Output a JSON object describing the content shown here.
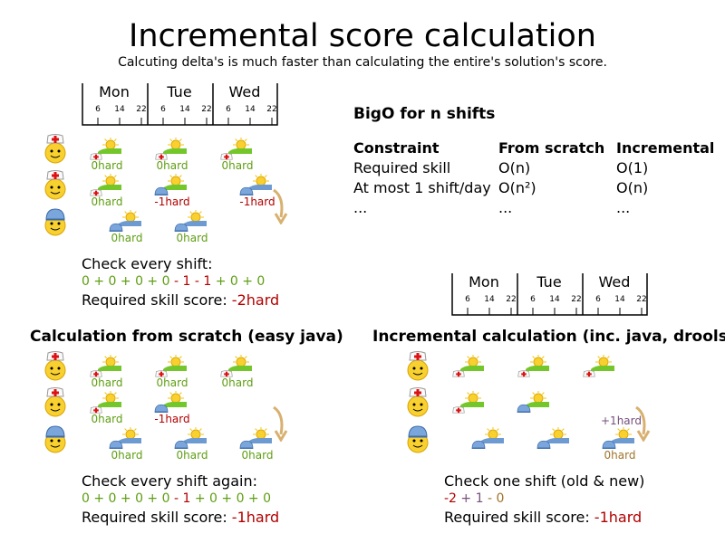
{
  "title": "Incremental score calculation",
  "subtitle": "Calcuting delta's is much faster than calculating the entire's solution's score.",
  "colors": {
    "good": "#5e9e12",
    "bad": "#b20000",
    "delta": "#75507b",
    "new": "#a0742a",
    "nurse_shift": "#73c72a",
    "other_shift": "#6d9bd1"
  },
  "ruler": {
    "days": [
      "Mon",
      "Tue",
      "Wed"
    ],
    "ticks": [
      "6",
      "14",
      "22"
    ]
  },
  "bigo": {
    "title": "BigO for n shifts",
    "headers": [
      "Constraint",
      "From scratch",
      "Incremental"
    ],
    "rows": [
      [
        "Required skill",
        "O(n)",
        "O(1)"
      ],
      [
        "At most 1 shift/day",
        "O(n²)",
        "O(n)"
      ],
      [
        "...",
        "...",
        "..."
      ]
    ]
  },
  "panels": [
    {
      "employees": [
        "nurse",
        "nurse",
        "cap"
      ],
      "shifts": [
        {
          "row": 0,
          "day": 0,
          "slot": "early",
          "skill": "nurse",
          "assignee": "nurse",
          "score": "0hard",
          "tone": "g"
        },
        {
          "row": 0,
          "day": 1,
          "slot": "early",
          "skill": "nurse",
          "assignee": "nurse",
          "score": "0hard",
          "tone": "g"
        },
        {
          "row": 0,
          "day": 2,
          "slot": "early",
          "skill": "nurse",
          "assignee": "nurse",
          "score": "0hard",
          "tone": "g"
        },
        {
          "row": 1,
          "day": 0,
          "slot": "early",
          "skill": "nurse",
          "assignee": "nurse",
          "score": "0hard",
          "tone": "g"
        },
        {
          "row": 1,
          "day": 1,
          "slot": "early",
          "skill": "nurse",
          "assignee": "cap",
          "score": "-1hard",
          "tone": "r"
        },
        {
          "row": 1,
          "day": 2,
          "slot": "late",
          "skill": "other",
          "assignee": "cap",
          "score": "-1hard",
          "tone": "r"
        },
        {
          "row": 2,
          "day": 0,
          "slot": "late",
          "skill": "other",
          "assignee": "cap",
          "score": "0hard",
          "tone": "g"
        },
        {
          "row": 2,
          "day": 1,
          "slot": "late",
          "skill": "other",
          "assignee": "cap",
          "score": "0hard",
          "tone": "g"
        }
      ],
      "check": "Check every shift:",
      "sum": [
        {
          "t": "0 + 0 + 0 + 0",
          "c": "g"
        },
        {
          "t": " - 1 - 1 ",
          "c": "r"
        },
        {
          "t": "+ 0 + 0",
          "c": "g"
        }
      ],
      "result_label": "Required skill score: ",
      "result_value": "-2hard"
    },
    {
      "heading": "Calculation from scratch (easy java)",
      "employees": [
        "nurse",
        "nurse",
        "cap"
      ],
      "shifts": [
        {
          "row": 0,
          "day": 0,
          "slot": "early",
          "skill": "nurse",
          "assignee": "nurse",
          "score": "0hard",
          "tone": "g"
        },
        {
          "row": 0,
          "day": 1,
          "slot": "early",
          "skill": "nurse",
          "assignee": "nurse",
          "score": "0hard",
          "tone": "g"
        },
        {
          "row": 0,
          "day": 2,
          "slot": "early",
          "skill": "nurse",
          "assignee": "nurse",
          "score": "0hard",
          "tone": "g"
        },
        {
          "row": 1,
          "day": 0,
          "slot": "early",
          "skill": "nurse",
          "assignee": "nurse",
          "score": "0hard",
          "tone": "g"
        },
        {
          "row": 1,
          "day": 1,
          "slot": "early",
          "skill": "nurse",
          "assignee": "cap",
          "score": "-1hard",
          "tone": "r"
        },
        {
          "row": 2,
          "day": 0,
          "slot": "late",
          "skill": "other",
          "assignee": "cap",
          "score": "0hard",
          "tone": "g"
        },
        {
          "row": 2,
          "day": 1,
          "slot": "late",
          "skill": "other",
          "assignee": "cap",
          "score": "0hard",
          "tone": "g"
        },
        {
          "row": 2,
          "day": 2,
          "slot": "late",
          "skill": "other",
          "assignee": "cap",
          "score": "0hard",
          "tone": "g"
        }
      ],
      "check": "Check every shift again:",
      "sum": [
        {
          "t": "0 + 0 + 0 + 0",
          "c": "g"
        },
        {
          "t": " - 1 ",
          "c": "r"
        },
        {
          "t": "+ 0 + 0 + 0",
          "c": "g"
        }
      ],
      "result_label": "Required skill score: ",
      "result_value": "-1hard"
    },
    {
      "heading": "Incremental calculation (inc. java, drools)",
      "employees": [
        "nurse",
        "nurse",
        "cap"
      ],
      "shifts": [
        {
          "row": 0,
          "day": 0,
          "slot": "early",
          "skill": "nurse",
          "assignee": "nurse",
          "score": "",
          "tone": "g"
        },
        {
          "row": 0,
          "day": 1,
          "slot": "early",
          "skill": "nurse",
          "assignee": "nurse",
          "score": "",
          "tone": "g"
        },
        {
          "row": 0,
          "day": 2,
          "slot": "early",
          "skill": "nurse",
          "assignee": "nurse",
          "score": "",
          "tone": "g"
        },
        {
          "row": 1,
          "day": 0,
          "slot": "early",
          "skill": "nurse",
          "assignee": "nurse",
          "score": "",
          "tone": "g"
        },
        {
          "row": 1,
          "day": 1,
          "slot": "early",
          "skill": "nurse",
          "assignee": "cap",
          "score": "",
          "tone": "g"
        },
        {
          "row": 2,
          "day": 0,
          "slot": "late",
          "skill": "other",
          "assignee": "cap",
          "score": "",
          "tone": "g"
        },
        {
          "row": 2,
          "day": 1,
          "slot": "late",
          "skill": "other",
          "assignee": "cap",
          "score": "",
          "tone": "g"
        },
        {
          "row": 2,
          "day": 2,
          "slot": "late",
          "skill": "other",
          "assignee": "cap",
          "score": "0hard",
          "tone": "b"
        }
      ],
      "delta_label": "+1hard",
      "check": "Check one shift (old & new)",
      "sum": [
        {
          "t": "-2",
          "c": "r"
        },
        {
          "t": " + 1 ",
          "c": "p"
        },
        {
          "t": "- 0",
          "c": "b"
        }
      ],
      "result_label": "Required skill score: ",
      "result_value": "-1hard"
    }
  ]
}
